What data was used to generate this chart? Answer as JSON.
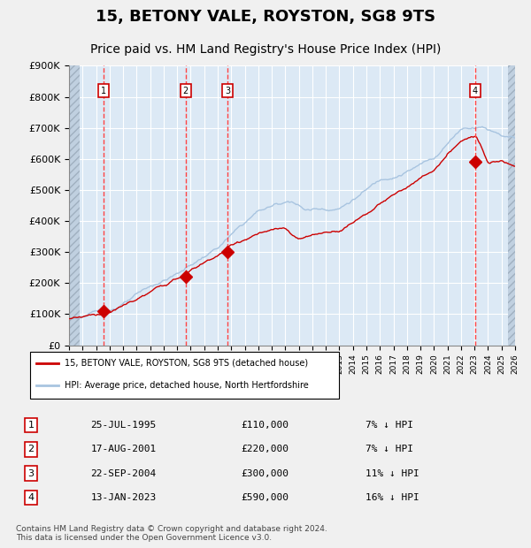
{
  "title": "15, BETONY VALE, ROYSTON, SG8 9TS",
  "subtitle": "Price paid vs. HM Land Registry's House Price Index (HPI)",
  "x_start_year": 1993,
  "x_end_year": 2026,
  "y_min": 0,
  "y_max": 900000,
  "y_ticks": [
    0,
    100000,
    200000,
    300000,
    400000,
    500000,
    600000,
    700000,
    800000,
    900000
  ],
  "y_tick_labels": [
    "£0",
    "£100K",
    "£200K",
    "£300K",
    "£400K",
    "£500K",
    "£600K",
    "£700K",
    "£800K",
    "£900K"
  ],
  "sale_dates": [
    1995.56,
    2001.63,
    2004.73,
    2023.04
  ],
  "sale_prices": [
    110000,
    220000,
    300000,
    590000
  ],
  "sale_labels": [
    "1",
    "2",
    "3",
    "4"
  ],
  "hpi_color": "#a8c4e0",
  "price_color": "#cc0000",
  "dashed_line_color": "#ff4444",
  "background_color": "#dce9f5",
  "plot_bg_color": "#dce9f5",
  "hatch_area_color": "#c8d8e8",
  "grid_color": "#ffffff",
  "legend_line1": "15, BETONY VALE, ROYSTON, SG8 9TS (detached house)",
  "legend_line2": "HPI: Average price, detached house, North Hertfordshire",
  "table_entries": [
    [
      "1",
      "25-JUL-1995",
      "£110,000",
      "7% ↓ HPI"
    ],
    [
      "2",
      "17-AUG-2001",
      "£220,000",
      "7% ↓ HPI"
    ],
    [
      "3",
      "22-SEP-2004",
      "£300,000",
      "11% ↓ HPI"
    ],
    [
      "4",
      "13-JAN-2023",
      "£590,000",
      "16% ↓ HPI"
    ]
  ],
  "footer": "Contains HM Land Registry data © Crown copyright and database right 2024.\nThis data is licensed under the Open Government Licence v3.0."
}
